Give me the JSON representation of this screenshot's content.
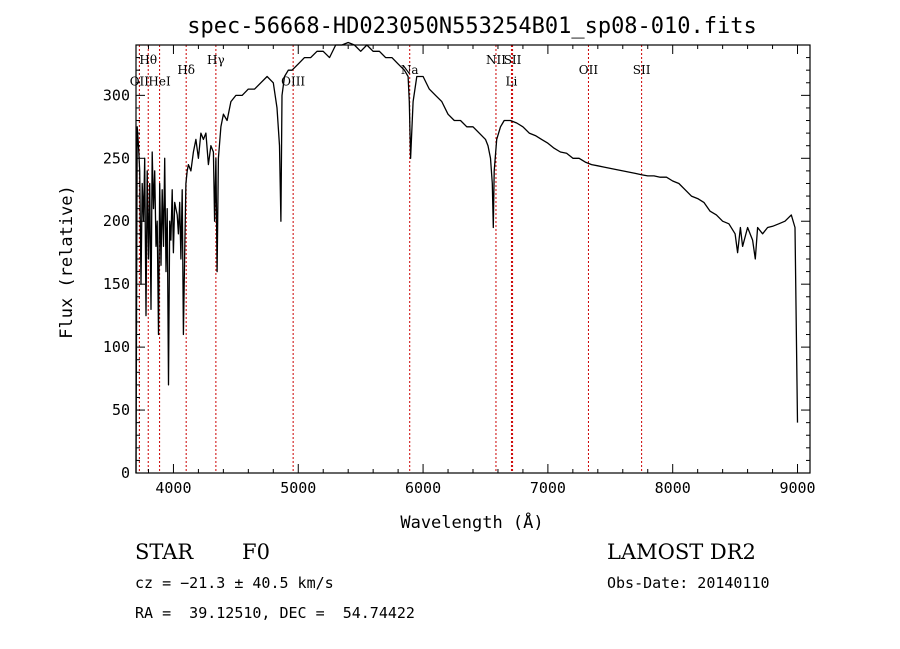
{
  "chart_data": {
    "type": "line",
    "title": "spec-56668-HD023050N553254B01_sp08-010.fits",
    "xlabel": "Wavelength (Å)",
    "ylabel": "Flux (relative)",
    "xlim": [
      3700,
      9100
    ],
    "ylim": [
      0,
      340
    ],
    "xticks": [
      4000,
      5000,
      6000,
      7000,
      8000,
      9000
    ],
    "yticks": [
      0,
      50,
      100,
      150,
      200,
      250,
      300
    ],
    "grid": false,
    "line_color": "#000000",
    "marker_color": "#cc0000",
    "series": [
      {
        "x": [
          3700,
          3710,
          3720,
          3730,
          3740,
          3750,
          3760,
          3770,
          3780,
          3790,
          3800,
          3810,
          3820,
          3830,
          3840,
          3850,
          3860,
          3870,
          3880,
          3890,
          3900,
          3910,
          3920,
          3930,
          3940,
          3950,
          3960,
          3970,
          3980,
          3990,
          4000,
          4010,
          4020,
          4030,
          4040,
          4050,
          4060,
          4070,
          4080,
          4090,
          4100,
          4110,
          4120,
          4140,
          4160,
          4180,
          4200,
          4220,
          4240,
          4260,
          4280,
          4300,
          4320,
          4330,
          4340,
          4350,
          4360,
          4380,
          4400,
          4430,
          4460,
          4500,
          4550,
          4600,
          4650,
          4700,
          4750,
          4800,
          4830,
          4850,
          4861,
          4870,
          4890,
          4920,
          4950,
          5000,
          5050,
          5100,
          5150,
          5200,
          5250,
          5300,
          5350,
          5400,
          5450,
          5500,
          5550,
          5600,
          5650,
          5700,
          5750,
          5800,
          5850,
          5880,
          5890,
          5900,
          5920,
          5950,
          6000,
          6050,
          6100,
          6150,
          6200,
          6250,
          6300,
          6350,
          6400,
          6450,
          6500,
          6520,
          6540,
          6555,
          6563,
          6570,
          6590,
          6620,
          6650,
          6700,
          6750,
          6800,
          6850,
          6900,
          6950,
          7000,
          7050,
          7100,
          7150,
          7200,
          7250,
          7300,
          7350,
          7400,
          7450,
          7500,
          7550,
          7600,
          7650,
          7700,
          7750,
          7800,
          7850,
          7900,
          7950,
          8000,
          8050,
          8100,
          8150,
          8200,
          8250,
          8300,
          8350,
          8400,
          8450,
          8500,
          8520,
          8542,
          8560,
          8600,
          8640,
          8662,
          8680,
          8720,
          8760,
          8800,
          8850,
          8900,
          8950,
          8980,
          9000
        ],
        "values": [
          0,
          275,
          260,
          240,
          150,
          230,
          200,
          250,
          125,
          240,
          170,
          230,
          130,
          255,
          210,
          240,
          180,
          200,
          110,
          230,
          165,
          225,
          180,
          250,
          160,
          210,
          70,
          200,
          185,
          225,
          175,
          215,
          210,
          205,
          190,
          215,
          170,
          225,
          110,
          175,
          230,
          240,
          245,
          240,
          255,
          265,
          250,
          270,
          265,
          270,
          245,
          260,
          255,
          200,
          250,
          160,
          250,
          275,
          285,
          280,
          295,
          300,
          300,
          305,
          305,
          310,
          315,
          310,
          290,
          260,
          200,
          300,
          315,
          320,
          320,
          325,
          330,
          330,
          335,
          335,
          330,
          340,
          340,
          342,
          340,
          335,
          340,
          335,
          335,
          330,
          330,
          325,
          320,
          315,
          295,
          250,
          295,
          315,
          315,
          305,
          300,
          295,
          285,
          280,
          280,
          275,
          275,
          270,
          265,
          260,
          250,
          230,
          195,
          240,
          265,
          275,
          280,
          280,
          278,
          275,
          270,
          268,
          265,
          262,
          258,
          255,
          254,
          250,
          250,
          247,
          245,
          244,
          243,
          242,
          241,
          240,
          239,
          238,
          237,
          236,
          236,
          235,
          235,
          232,
          230,
          225,
          220,
          218,
          215,
          208,
          205,
          200,
          198,
          190,
          175,
          195,
          180,
          195,
          185,
          170,
          195,
          190,
          195,
          196,
          198,
          200,
          205,
          195,
          40
        ]
      }
    ],
    "line_markers": [
      {
        "label": "Hθ",
        "x": 3798,
        "label_y": 325
      },
      {
        "label": "OII",
        "x": 3727,
        "label_y": 308
      },
      {
        "label": "HeI",
        "x": 3889,
        "label_y": 308
      },
      {
        "label": "Hδ",
        "x": 4102,
        "label_y": 317
      },
      {
        "label": "Hγ",
        "x": 4340,
        "label_y": 325
      },
      {
        "label": "OIII",
        "x": 4959,
        "label_y": 308
      },
      {
        "label": "Na",
        "x": 5893,
        "label_y": 317
      },
      {
        "label": "NII",
        "x": 6584,
        "label_y": 325
      },
      {
        "label": "SII",
        "x": 6717,
        "label_y": 325
      },
      {
        "label": "Li",
        "x": 6708,
        "label_y": 308
      },
      {
        "label": "OII",
        "x": 7325,
        "label_y": 317
      },
      {
        "label": "SII",
        "x": 7751,
        "label_y": 317
      }
    ]
  },
  "footer": {
    "object_type": "STAR",
    "subclass": "F0",
    "survey": "LAMOST DR2",
    "cz": "cz = −21.3 ± 40.5 km/s",
    "obs_date": "Obs-Date: 20140110",
    "coords": "RA =  39.12510, DEC =  54.74422"
  }
}
